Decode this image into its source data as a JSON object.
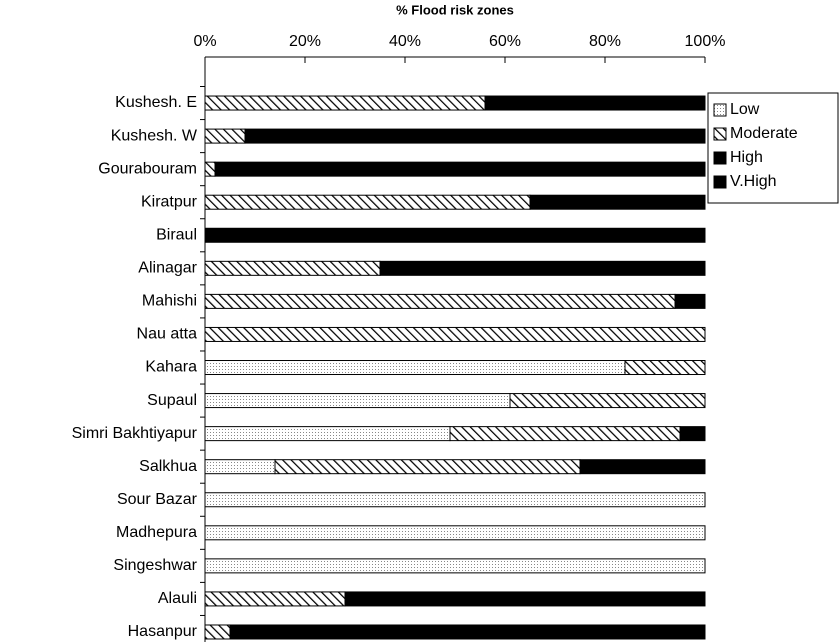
{
  "chart_data": {
    "type": "stacked-barh",
    "title": "% Flood risk zones",
    "categories": [
      "Kushesh. E",
      "Kushesh. W",
      "Gourabouram",
      "Kiratpur",
      "Biraul",
      "Alinagar",
      "Mahishi",
      "Nau atta",
      "Kahara",
      "Supaul",
      "Simri Bakhtiyapur",
      "Salkhua",
      "Sour Bazar",
      "Madhepura",
      "Singeshwar",
      "Alauli",
      "Hasanpur"
    ],
    "series": [
      {
        "name": "Low",
        "color": "#bdbdbd",
        "pattern": "dots",
        "values": [
          0,
          0,
          0,
          0,
          0,
          0,
          0,
          0,
          84,
          61,
          49,
          14,
          100,
          100,
          100,
          0,
          0
        ]
      },
      {
        "name": "Moderate",
        "color": "#000000",
        "pattern": "hatch",
        "values": [
          56,
          8,
          2,
          65,
          0,
          35,
          94,
          100,
          16,
          39,
          46,
          61,
          0,
          0,
          0,
          28,
          5
        ]
      },
      {
        "name": "High",
        "color": "#000000",
        "pattern": "solid",
        "values": [
          44,
          92,
          98,
          35,
          100,
          65,
          6,
          0,
          0,
          0,
          5,
          25,
          0,
          0,
          0,
          72,
          95
        ]
      },
      {
        "name": "V.High",
        "color": "#000000",
        "pattern": "solid",
        "values": [
          0,
          0,
          0,
          0,
          0,
          0,
          0,
          0,
          0,
          0,
          0,
          0,
          0,
          0,
          0,
          0,
          0
        ]
      }
    ],
    "xlim": [
      0,
      100
    ],
    "xticks": [
      {
        "value": 0,
        "label": "0%"
      },
      {
        "value": 20,
        "label": "20%"
      },
      {
        "value": 40,
        "label": "40%"
      },
      {
        "value": 60,
        "label": "60%"
      },
      {
        "value": 80,
        "label": "80%"
      },
      {
        "value": 100,
        "label": "100%"
      }
    ],
    "legend": "right"
  }
}
